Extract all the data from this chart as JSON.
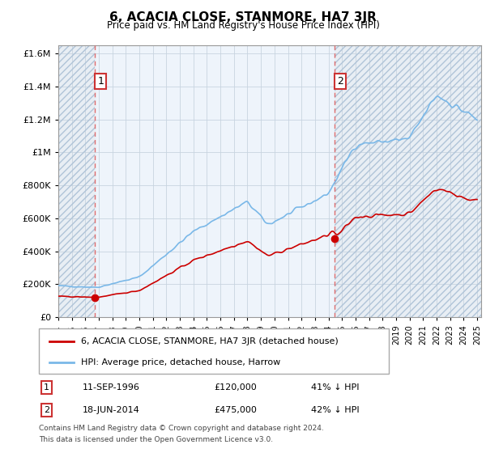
{
  "title": "6, ACACIA CLOSE, STANMORE, HA7 3JR",
  "subtitle": "Price paid vs. HM Land Registry's House Price Index (HPI)",
  "ylim": [
    0,
    1650000
  ],
  "yticks": [
    0,
    200000,
    400000,
    600000,
    800000,
    1000000,
    1200000,
    1400000,
    1600000
  ],
  "sale1_x": 1996.7,
  "sale2_x": 2014.45,
  "sale1_price": 120000,
  "sale2_price": 475000,
  "hpi_line_color": "#7ab8e8",
  "price_line_color": "#cc0000",
  "dashed_line_color": "#e06060",
  "hatch_bg_color": "#e8eef4",
  "plot_bg_color": "#eef4fb",
  "grid_color": "#c8d4e0",
  "legend_label1": "6, ACACIA CLOSE, STANMORE, HA7 3JR (detached house)",
  "legend_label2": "HPI: Average price, detached house, Harrow",
  "footnote1": "Contains HM Land Registry data © Crown copyright and database right 2024.",
  "footnote2": "This data is licensed under the Open Government Licence v3.0."
}
